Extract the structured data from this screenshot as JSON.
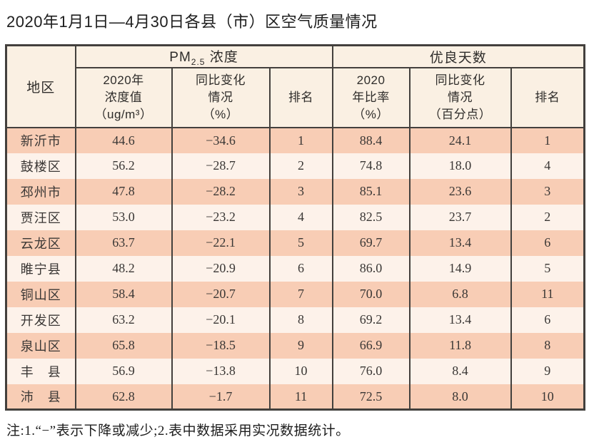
{
  "page": {
    "title": "2020年1月1日—4月30日各县（市）区空气质量情况",
    "footnote": "注:1.“−”表示下降或减少;2.表中数据采用实况数据统计。"
  },
  "colors": {
    "border": "#43403d",
    "header_bg": "#faf0e3",
    "row_odd_bg": "#f8cdb5",
    "row_even_bg": "#fdf2ea"
  },
  "table": {
    "header": {
      "region": "地区",
      "pm_group": {
        "pm": "PM",
        "pm_sub": "2.5",
        "suffix": " 浓度"
      },
      "good_days_group": "优良天数",
      "sub": {
        "pm_value": "2020年\n浓度值\n（ug/m³）",
        "pm_change": "同比变化\n情况\n（%）",
        "pm_rank": "排名",
        "good_ratio": "2020\n年比率\n（%）",
        "good_change": "同比变化\n情况\n（百分点）",
        "good_rank": "排名"
      }
    },
    "rows": [
      {
        "region": "新沂市",
        "pm_value": "44.6",
        "pm_change": "−34.6",
        "pm_rank": "1",
        "good_ratio": "88.4",
        "good_change": "24.1",
        "good_rank": "1"
      },
      {
        "region": "鼓楼区",
        "pm_value": "56.2",
        "pm_change": "−28.7",
        "pm_rank": "2",
        "good_ratio": "74.8",
        "good_change": "18.0",
        "good_rank": "4"
      },
      {
        "region": "邳州市",
        "pm_value": "47.8",
        "pm_change": "−28.2",
        "pm_rank": "3",
        "good_ratio": "85.1",
        "good_change": "23.6",
        "good_rank": "3"
      },
      {
        "region": "贾汪区",
        "pm_value": "53.0",
        "pm_change": "−23.2",
        "pm_rank": "4",
        "good_ratio": "82.5",
        "good_change": "23.7",
        "good_rank": "2"
      },
      {
        "region": "云龙区",
        "pm_value": "63.7",
        "pm_change": "−22.1",
        "pm_rank": "5",
        "good_ratio": "69.7",
        "good_change": "13.4",
        "good_rank": "6"
      },
      {
        "region": "睢宁县",
        "pm_value": "48.2",
        "pm_change": "−20.9",
        "pm_rank": "6",
        "good_ratio": "86.0",
        "good_change": "14.9",
        "good_rank": "5"
      },
      {
        "region": "铜山区",
        "pm_value": "58.4",
        "pm_change": "−20.7",
        "pm_rank": "7",
        "good_ratio": "70.0",
        "good_change": "6.8",
        "good_rank": "11"
      },
      {
        "region": "开发区",
        "pm_value": "63.2",
        "pm_change": "−20.1",
        "pm_rank": "8",
        "good_ratio": "69.2",
        "good_change": "13.4",
        "good_rank": "6"
      },
      {
        "region": "泉山区",
        "pm_value": "65.8",
        "pm_change": "−18.5",
        "pm_rank": "9",
        "good_ratio": "66.9",
        "good_change": "11.8",
        "good_rank": "8"
      },
      {
        "region": "丰　县",
        "pm_value": "56.9",
        "pm_change": "−13.8",
        "pm_rank": "10",
        "good_ratio": "76.0",
        "good_change": "8.4",
        "good_rank": "9"
      },
      {
        "region": "沛　县",
        "pm_value": "62.8",
        "pm_change": "−1.7",
        "pm_rank": "11",
        "good_ratio": "72.5",
        "good_change": "8.0",
        "good_rank": "10"
      }
    ]
  }
}
